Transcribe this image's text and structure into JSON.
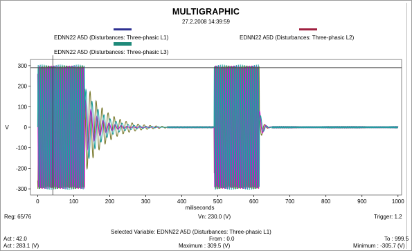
{
  "header": {
    "title": "MULTIGRAPHIC",
    "timestamp": "27.2.2008 14:39:59"
  },
  "colors": {
    "L1": "#2e3192",
    "L2": "#a02040",
    "L3": "#1f8a7a",
    "L1_line": "#1f9fa0",
    "L2_line": "#d011c9",
    "L3_line": "#7a7a2e",
    "threshold": "#444444"
  },
  "footer": {
    "reg": "Reg: 65/76",
    "vn": "Vn: 230.0 (V)",
    "trigger": "Trigger: 1.2",
    "selected_variable": "Selected Variable: EDNN22 A5D (Disturbances: Three-phasic L1)",
    "act": "Act : 42.0",
    "from": "From : 0.0",
    "to": "To : 999.5",
    "act_value": "Act : 283.1 (V)",
    "maximum": "Maximum : 309.5 (V)",
    "minimum": "Minimum : -305.7 (V)"
  },
  "chart_data": {
    "type": "line",
    "title": "MULTIGRAPHIC",
    "xlabel": "miliseconds",
    "ylabel": "V",
    "xlim": [
      -20,
      1010
    ],
    "ylim": [
      -330,
      330
    ],
    "x_ticks": [
      0,
      100,
      200,
      300,
      400,
      500,
      600,
      700,
      800,
      900,
      1000
    ],
    "y_ticks": [
      300,
      200,
      100,
      0,
      -100,
      -200,
      -300
    ],
    "threshold": 290,
    "cursor_x": 42,
    "legend_placement": "top",
    "grid": false,
    "series": [
      {
        "name": "EDNN22 A5D (Disturbances: Three-phasic L1)",
        "segments": [
          {
            "x_start": 0,
            "x_end": 130,
            "amplitude": 305,
            "frequency_hz": 50,
            "phase_deg": 0
          },
          {
            "x_start": 490,
            "x_end": 615,
            "amplitude": 305,
            "frequency_hz": 50,
            "phase_deg": 0
          }
        ],
        "decay": {
          "x_start": 130,
          "x_end": 340,
          "amplitude": 200,
          "frequency_hz": 50,
          "tau_ms": 45
        }
      },
      {
        "name": "EDNN22 A5D (Disturbances: Three-phasic L2)",
        "segments": [
          {
            "x_start": 0,
            "x_end": 130,
            "amplitude": 300,
            "frequency_hz": 50,
            "phase_deg": 120
          },
          {
            "x_start": 490,
            "x_end": 615,
            "amplitude": 300,
            "frequency_hz": 50,
            "phase_deg": 120
          }
        ],
        "decay": {
          "x_start": 130,
          "x_end": 300,
          "amplitude": 150,
          "frequency_hz": 50,
          "tau_ms": 35
        }
      },
      {
        "name": "EDNN22 A5D (Disturbances: Three-phasic L3)",
        "segments": [
          {
            "x_start": 0,
            "x_end": 130,
            "amplitude": 300,
            "frequency_hz": 50,
            "phase_deg": 240
          },
          {
            "x_start": 490,
            "x_end": 615,
            "amplitude": 300,
            "frequency_hz": 50,
            "phase_deg": 240
          }
        ],
        "decay": {
          "x_start": 130,
          "x_end": 360,
          "amplitude": 230,
          "frequency_hz": 50,
          "tau_ms": 55
        }
      }
    ]
  }
}
